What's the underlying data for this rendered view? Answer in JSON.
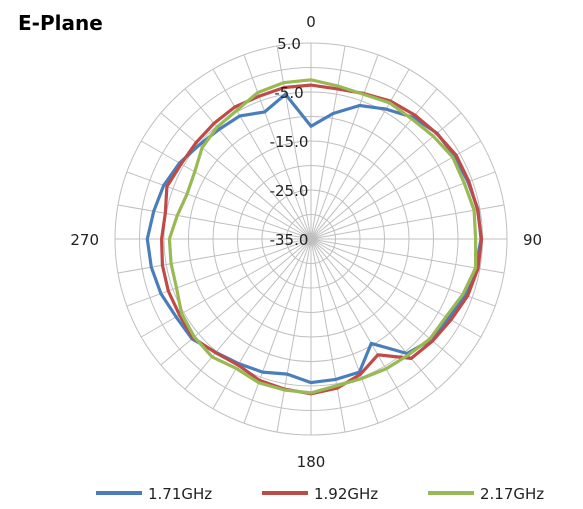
{
  "chart_data": {
    "type": "polar-line",
    "title": "E-Plane",
    "angular_axis": {
      "unit": "degrees",
      "direction": "clockwise",
      "zero_at": "top",
      "step": 10,
      "labels": [
        {
          "angle": 0,
          "text": "0"
        },
        {
          "angle": 90,
          "text": "90"
        },
        {
          "angle": 180,
          "text": "180"
        },
        {
          "angle": 270,
          "text": "270"
        }
      ]
    },
    "radial_axis": {
      "min": -35,
      "max": 5,
      "ring_step": 5,
      "tick_labels": [
        "5.0",
        "-5.0",
        "-15.0",
        "-25.0",
        "-35.0"
      ]
    },
    "grid": true,
    "legend_position": "bottom",
    "angles": [
      0,
      10,
      20,
      30,
      40,
      50,
      60,
      70,
      80,
      90,
      100,
      110,
      120,
      130,
      140,
      150,
      160,
      170,
      180,
      190,
      200,
      210,
      220,
      230,
      240,
      250,
      260,
      270,
      280,
      290,
      300,
      310,
      320,
      330,
      340,
      350
    ],
    "series": [
      {
        "name": "1.71GHz",
        "color": "#4a7ebb",
        "values": [
          -12.0,
          -9.0,
          -6.0,
          -4.4,
          -2.6,
          -1.4,
          -1.2,
          -0.9,
          -0.4,
          -0.3,
          -0.9,
          -1.5,
          -2.6,
          -3.0,
          -4.5,
          -10.4,
          -6.1,
          -5.9,
          -5.7,
          -7.0,
          -6.1,
          -5.6,
          -4.8,
          -3.3,
          -3.2,
          -2.4,
          -1.9,
          -1.6,
          -2.4,
          -3.0,
          -4.0,
          -5.2,
          -5.8,
          -6.0,
          -7.4,
          -5.0
        ]
      },
      {
        "name": "1.92GHz",
        "color": "#be4b48",
        "values": [
          -3.6,
          -3.9,
          -3.4,
          -2.5,
          -2.0,
          -1.5,
          -0.8,
          -0.7,
          -0.5,
          -0.2,
          -0.4,
          -1.0,
          -2.0,
          -2.6,
          -3.2,
          -7.7,
          -5.6,
          -4.1,
          -3.4,
          -3.9,
          -4.3,
          -5.3,
          -4.7,
          -3.6,
          -4.0,
          -4.0,
          -4.2,
          -4.5,
          -4.8,
          -3.7,
          -4.4,
          -4.4,
          -4.2,
          -3.9,
          -4.0,
          -3.6
        ]
      },
      {
        "name": "2.17GHz",
        "color": "#98b954",
        "values": [
          -2.5,
          -3.3,
          -3.6,
          -2.9,
          -3.0,
          -2.4,
          -1.6,
          -1.7,
          -1.2,
          -1.4,
          -0.9,
          -2.0,
          -3.2,
          -3.3,
          -4.1,
          -4.4,
          -4.7,
          -4.6,
          -3.6,
          -3.7,
          -3.8,
          -4.5,
          -3.6,
          -3.9,
          -4.5,
          -5.8,
          -6.0,
          -6.1,
          -7.3,
          -8.1,
          -7.6,
          -6.0,
          -5.2,
          -4.7,
          -3.2,
          -2.6
        ]
      }
    ]
  }
}
